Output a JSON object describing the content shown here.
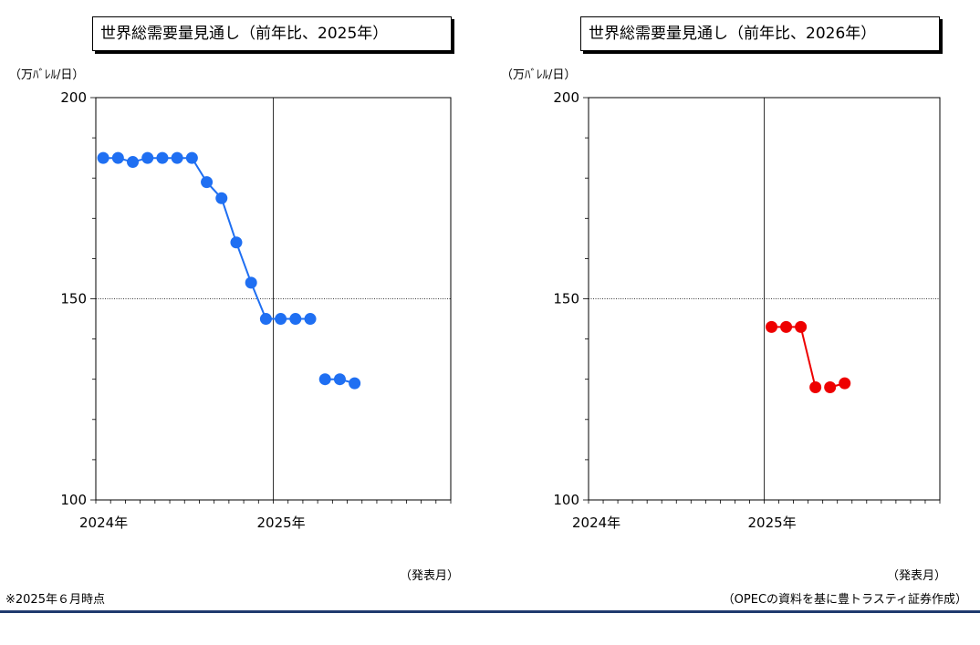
{
  "footnote": "※2025年６月時点",
  "source": "（OPECの資料を基に豊トラスティ証券作成）",
  "chart_data": [
    {
      "type": "line",
      "title": "世界総需要量見通し（前年比、2025年）",
      "ylabel": "（万ﾊﾞﾚﾙ/日）",
      "xlabel": "（発表月）",
      "ylim": [
        100,
        200
      ],
      "yticks": [
        "200",
        "150",
        "100"
      ],
      "xticks": [
        "2024年",
        "2025年"
      ],
      "x_months": 24,
      "color": "#1f6ff2",
      "series": [
        {
          "x": [
            "2024-01",
            "2024-02",
            "2024-03",
            "2024-04",
            "2024-05",
            "2024-06",
            "2024-07",
            "2024-08",
            "2024-09",
            "2024-10",
            "2024-11",
            "2024-12",
            "2025-01",
            "2025-02",
            "2025-03",
            "2025-04",
            "2025-05",
            "2025-06"
          ],
          "values": [
            185,
            185,
            184,
            185,
            185,
            185,
            185,
            179,
            175,
            164,
            154,
            145,
            145,
            145,
            145,
            130,
            130,
            129
          ],
          "segments": [
            [
              0,
              14
            ],
            [
              15,
              17
            ]
          ]
        }
      ]
    },
    {
      "type": "line",
      "title": "世界総需要量見通し（前年比、2026年）",
      "ylabel": "（万ﾊﾞﾚﾙ/日）",
      "xlabel": "（発表月）",
      "ylim": [
        100,
        200
      ],
      "yticks": [
        "200",
        "150",
        "100"
      ],
      "xticks": [
        "2024年",
        "2025年"
      ],
      "x_months": 24,
      "color": "#ee0000",
      "series": [
        {
          "x": [
            "2025-01",
            "2025-02",
            "2025-03",
            "2025-04",
            "2025-05",
            "2025-06"
          ],
          "values": [
            143,
            143,
            143,
            128,
            128,
            129
          ],
          "segments": [
            [
              0,
              3
            ],
            [
              4,
              5
            ]
          ]
        }
      ]
    }
  ]
}
